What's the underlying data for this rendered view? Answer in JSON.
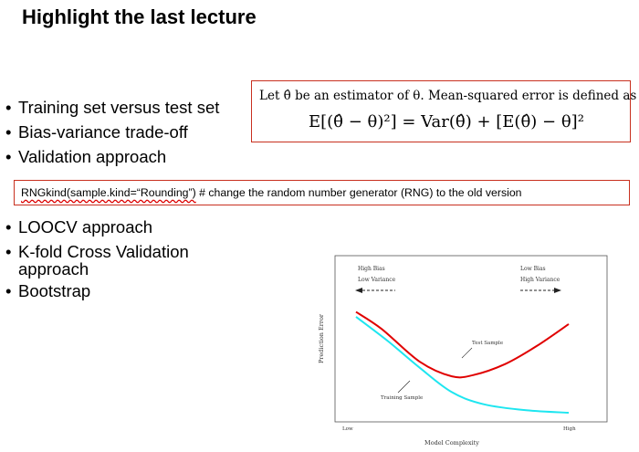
{
  "slide": {
    "title": "Highlight the last lecture",
    "bullets_top": [
      "Training set versus test set",
      "Bias-variance trade-off",
      "Validation approach"
    ],
    "bullets_bottom": [
      "LOOCV approach",
      "K-fold Cross Validation",
      "approach",
      "Bootstrap"
    ]
  },
  "formula": {
    "line1": "Let θ̂ be an estimator of θ.  Mean-squared error is defined as",
    "line2": "E[(θ̂ − θ)²] = Var(θ̂) + [E(θ̂) − θ]²"
  },
  "rng": {
    "code": "RNGkind(sample.kind=“Rounding”)",
    "comment": "  # change the random number generator (RNG) to the old version"
  },
  "chart_data": {
    "type": "line",
    "xlabel": "Model Complexity",
    "ylabel": "Prediction Error",
    "x_ticks": [
      "Low",
      "High"
    ],
    "annotations": {
      "left_top": "High Bias",
      "left_bottom": "Low Variance",
      "right_top": "Low Bias",
      "right_bottom": "High Variance",
      "test": "Test Sample",
      "train": "Training Sample"
    },
    "series": [
      {
        "name": "Test Sample",
        "color": "#e00000",
        "values": [
          [
            0.0,
            0.86
          ],
          [
            0.12,
            0.72
          ],
          [
            0.3,
            0.45
          ],
          [
            0.45,
            0.33
          ],
          [
            0.55,
            0.34
          ],
          [
            0.7,
            0.43
          ],
          [
            0.85,
            0.58
          ],
          [
            1.0,
            0.76
          ]
        ]
      },
      {
        "name": "Training Sample",
        "color": "#1ee6f0",
        "values": [
          [
            0.0,
            0.82
          ],
          [
            0.15,
            0.62
          ],
          [
            0.3,
            0.4
          ],
          [
            0.45,
            0.2
          ],
          [
            0.6,
            0.1
          ],
          [
            0.8,
            0.05
          ],
          [
            1.0,
            0.03
          ]
        ]
      }
    ],
    "xlim": [
      0,
      1
    ],
    "ylim": [
      0,
      1
    ]
  }
}
